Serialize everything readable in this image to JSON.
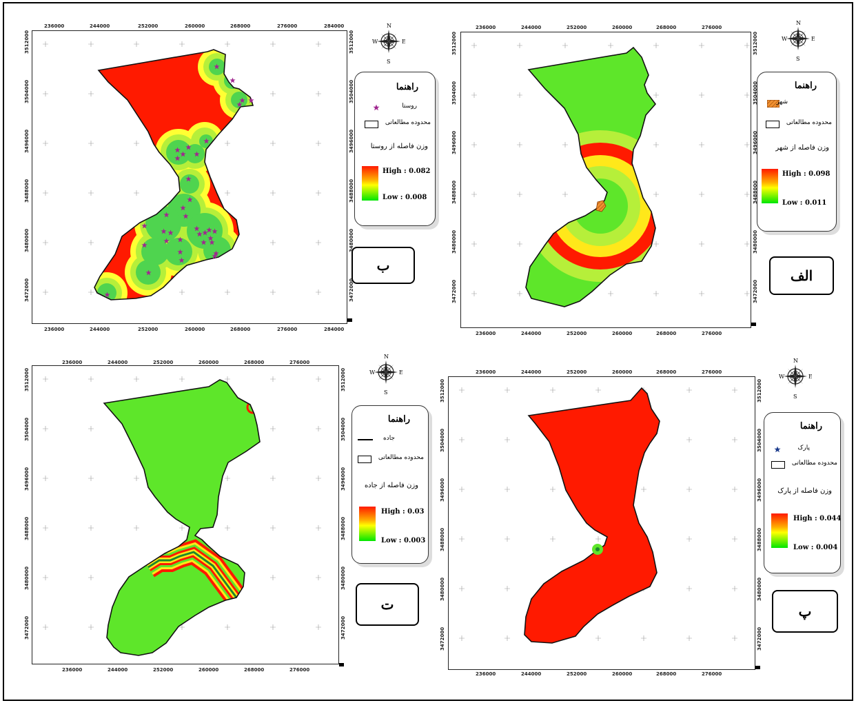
{
  "x_ticks_a": [
    "236000",
    "244000",
    "252000",
    "260000",
    "268000",
    "276000",
    "284000"
  ],
  "y_ticks_a": [
    "3512000",
    "3504000",
    "3496000",
    "3488000",
    "3480000",
    "3472000"
  ],
  "x_ticks_b": [
    "236000",
    "244000",
    "252000",
    "260000",
    "268000",
    "276000"
  ],
  "compass": {
    "n": "N",
    "s": "S",
    "e": "E",
    "w": "W"
  },
  "panels": {
    "b": {
      "label": "ب",
      "legend_title": "راهنما",
      "feature": "روستا",
      "boundary": "محدوده مطالعاتی",
      "weight_title": "وزن فاصله از روستا",
      "high": "High : 0.082",
      "low": "Low : 0.008"
    },
    "alef": {
      "label": "الف",
      "legend_title": "راهنما",
      "feature": "شهر",
      "boundary": "محدوده مطالعاتی",
      "weight_title": "وزن فاصله از شهر",
      "high": "High : 0.098",
      "low": "Low : 0.011"
    },
    "te": {
      "label": "ت",
      "legend_title": "راهنما",
      "feature": "جاده",
      "boundary": "محدوده مطالعاتی",
      "weight_title": "وزن فاصله از جاده",
      "high": "High : 0.03",
      "low": "Low : 0.003"
    },
    "pe": {
      "label": "پ",
      "legend_title": "راهنما",
      "feature": "پارک",
      "boundary": "محدوده مطالعاتی",
      "weight_title": "وزن فاصله از پارک",
      "high": "High : 0.044",
      "low": "Low : 0.004"
    }
  },
  "colors": {
    "high": "#ff1a00",
    "mid": "#ffff00",
    "low": "#66e600",
    "green": "#5ee62a",
    "village_star": "#a0268f",
    "park_star": "#1a3a8c",
    "city_fill": "#f09030"
  }
}
